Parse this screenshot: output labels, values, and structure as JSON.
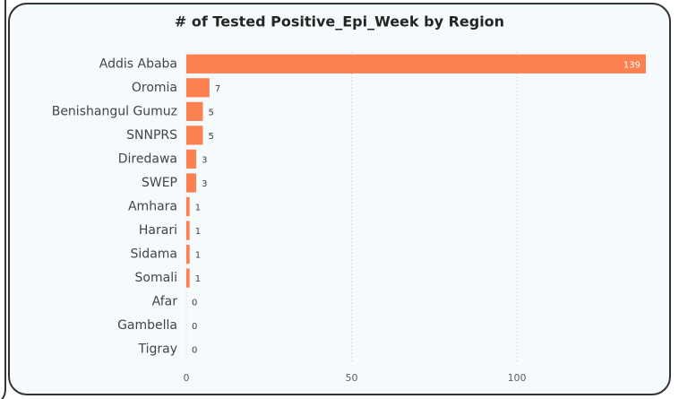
{
  "chart_data": {
    "type": "bar",
    "orientation": "horizontal",
    "title": "# of Tested Positive_Epi_Week by Region",
    "categories": [
      "Addis Ababa",
      "Oromia",
      "Benishangul Gumuz",
      "SNNPRS",
      "Diredawa",
      "SWEP",
      "Amhara",
      "Harari",
      "Sidama",
      "Somali",
      "Afar",
      "Gambella",
      "Tigray"
    ],
    "values": [
      139,
      7,
      5,
      5,
      3,
      3,
      1,
      1,
      1,
      1,
      0,
      0,
      0
    ],
    "color": "#fd8150",
    "xlim": [
      0,
      139
    ],
    "xticks": [
      0,
      50,
      100
    ],
    "grid": true
  }
}
